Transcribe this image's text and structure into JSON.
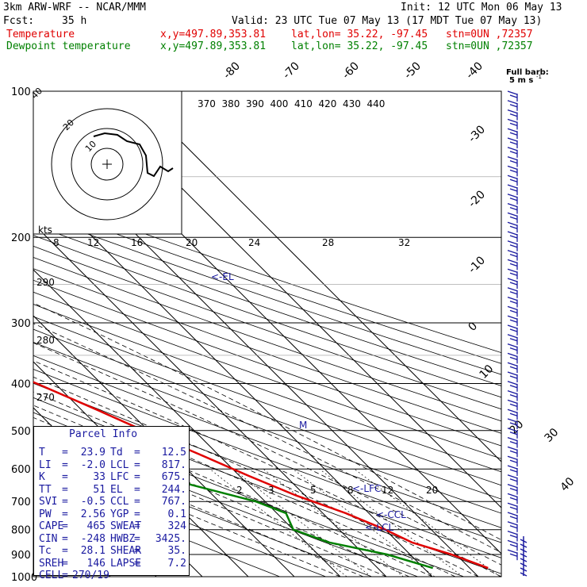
{
  "header": {
    "model": "3km ARW-WRF -- NCAR/MMM",
    "init": "Init: 12 UTC Mon 06 May 13",
    "fcst_label": "Fcst:",
    "fcst_value": "35 h",
    "valid": "Valid: 23 UTC Tue 07 May 13 (17 MDT Tue 07 May 13)",
    "lines": [
      {
        "name": "Temperature",
        "xy": "x,y=497.89,353.81",
        "latlon": "lat,lon= 35.22, -97.45",
        "stn": "stn=0UN ,72357",
        "color": "#e00000"
      },
      {
        "name": "Dewpoint temperature",
        "xy": "x,y=497.89,353.81",
        "latlon": "lat,lon= 35.22, -97.45",
        "stn": "stn=0UN ,72357",
        "color": "#008000"
      }
    ]
  },
  "barb_legend": {
    "line1": "Full barb:",
    "line2": "5 m s"
  },
  "parcel_info": {
    "title": "Parcel Info",
    "rows": [
      [
        "T",
        "=",
        "23.9",
        "Td",
        "=",
        "12.5"
      ],
      [
        "LI",
        "=",
        "-2.0",
        "LCL",
        "=",
        "817."
      ],
      [
        "K",
        "=",
        "33",
        "LFC",
        "=",
        "675."
      ],
      [
        "TT",
        "=",
        "51",
        "EL",
        "=",
        "244."
      ],
      [
        "SVI",
        "=",
        "-0.5",
        "CCL",
        "=",
        "767."
      ],
      [
        "PW",
        "=",
        "2.56",
        "YGP",
        "=",
        "0.1"
      ],
      [
        "CAPE",
        "=",
        "465",
        "SWEAT",
        "=",
        "324"
      ],
      [
        "CIN",
        "=",
        "-248",
        "HWBZ",
        "=",
        "3425."
      ],
      [
        "Tc",
        "=",
        "28.1",
        "SHEAR",
        "=",
        "35."
      ],
      [
        "SREH",
        "=",
        "146",
        "LAPSE",
        "=",
        "7.2"
      ],
      [
        "CELL",
        "=",
        "270/19",
        "",
        "",
        ""
      ]
    ]
  },
  "annotations": {
    "el": "<-EL",
    "lfc": "<-LFC",
    "ccl": "<-CCL",
    "lcl": "<-LCL",
    "m": "M",
    "kts": "kts"
  },
  "theta_e_labels": [
    "370",
    "380",
    "390",
    "400",
    "410",
    "420",
    "430",
    "440"
  ],
  "hodo_speed_labels": [
    "8",
    "12",
    "16",
    "20",
    "24",
    "28",
    "32"
  ],
  "hodo_ring_labels": [
    "40",
    "20",
    "10"
  ],
  "theta_labels": [
    "290",
    "280",
    "270"
  ],
  "mixing_ratio_labels": [
    "2",
    "3",
    "5",
    "8",
    "12",
    "20"
  ],
  "chart_data": {
    "type": "line",
    "pressure_axis": {
      "levels": [
        100,
        200,
        300,
        400,
        500,
        600,
        700,
        800,
        900,
        1000
      ],
      "scale": "log",
      "label": ""
    },
    "isotherm_labels_top": [
      -80,
      -70,
      -60,
      -50,
      -40
    ],
    "isotherm_labels_right": [
      -30,
      -20,
      -10,
      0,
      10,
      20,
      30,
      40
    ],
    "series": [
      {
        "name": "Temperature",
        "color": "#e00000",
        "points": [
          [
            -56,
            100
          ],
          [
            -58,
            120
          ],
          [
            -60,
            140
          ],
          [
            -62,
            160
          ],
          [
            -64,
            180
          ],
          [
            -65,
            200
          ],
          [
            -63,
            240
          ],
          [
            -56,
            280
          ],
          [
            -48,
            320
          ],
          [
            -41,
            360
          ],
          [
            -34,
            400
          ],
          [
            -27,
            450
          ],
          [
            -21,
            500
          ],
          [
            -14,
            560
          ],
          [
            -8,
            620
          ],
          [
            -2,
            680
          ],
          [
            5,
            740
          ],
          [
            10,
            800
          ],
          [
            13,
            850
          ],
          [
            19,
            900
          ],
          [
            24,
            960
          ]
        ]
      },
      {
        "name": "Dewpoint temperature",
        "color": "#008000",
        "points": [
          [
            -90,
            100
          ],
          [
            -90,
            200
          ],
          [
            -85,
            260
          ],
          [
            -80,
            340
          ],
          [
            -72,
            400
          ],
          [
            -72,
            450
          ],
          [
            -78,
            500
          ],
          [
            -45,
            560
          ],
          [
            -28,
            620
          ],
          [
            -12,
            700
          ],
          [
            -8,
            740
          ],
          [
            -10,
            800
          ],
          [
            -5,
            850
          ],
          [
            5,
            900
          ],
          [
            12,
            960
          ]
        ]
      }
    ]
  }
}
